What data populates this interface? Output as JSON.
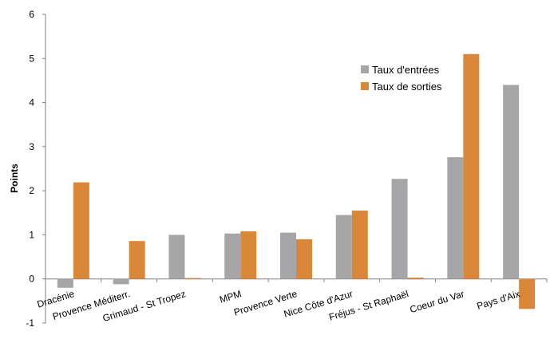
{
  "chart_data": {
    "type": "bar",
    "title": "",
    "xlabel": "",
    "ylabel": "Points",
    "ylim": [
      -1,
      6
    ],
    "yticks": [
      "-1",
      "0",
      "1",
      "2",
      "3",
      "4",
      "5",
      "6"
    ],
    "grid": false,
    "legend_position": "top-right",
    "categories": [
      "Dracénie",
      "Provence Méditerr.",
      "Grimaud - St Tropez",
      "MPM",
      "Provence Verte",
      "Nice Côte d'Azur",
      "Fréjus - St Raphaël",
      "Coeur du Var",
      "Pays d'Aix"
    ],
    "series": [
      {
        "name": "Taux d'entrées",
        "color": "#a6a6a8",
        "values": [
          -0.2,
          -0.12,
          1.0,
          1.03,
          1.05,
          1.45,
          2.27,
          2.76,
          4.4
        ]
      },
      {
        "name": "Taux de sorties",
        "color": "#d9883a",
        "values": [
          2.19,
          0.86,
          0.02,
          1.08,
          0.9,
          1.55,
          0.03,
          5.1,
          -0.68
        ]
      }
    ]
  }
}
